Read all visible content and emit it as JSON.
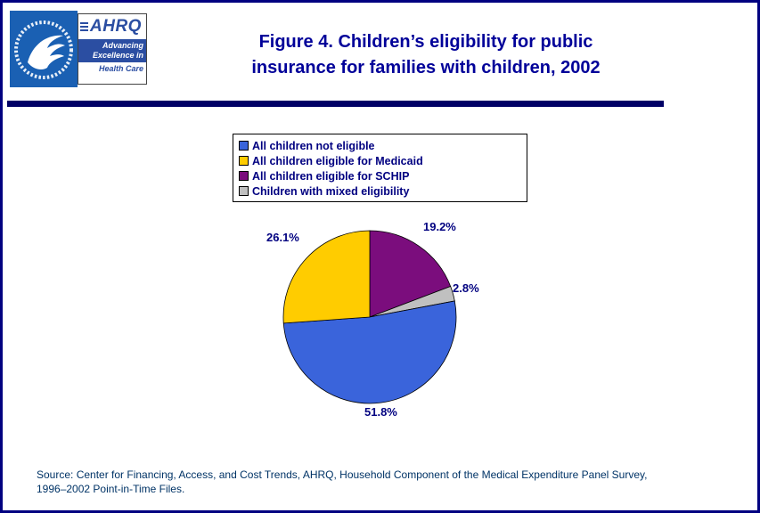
{
  "header": {
    "ahrq_logo": {
      "acronym": "AHRQ",
      "tagline_line1": "Advancing",
      "tagline_line2": "Excellence in",
      "tagline_line3": "Health Care"
    },
    "title_lines": [
      "Figure 4. Children’s eligibility for public",
      "insurance for families with children, 2002"
    ]
  },
  "chart_data": {
    "type": "pie",
    "title": "Figure 4. Children’s eligibility for public insurance for families with children, 2002",
    "slices": [
      {
        "label": "All children not eligible",
        "value": 51.8,
        "percent_label": "51.8%",
        "color": "#3A64DB"
      },
      {
        "label": "All children eligible for Medicaid",
        "value": 26.1,
        "percent_label": "26.1%",
        "color": "#FFCC00"
      },
      {
        "label": "All children eligible for SCHIP",
        "value": 19.2,
        "percent_label": "19.2%",
        "color": "#7B0D7D"
      },
      {
        "label": "Children with mixed eligibility",
        "value": 2.8,
        "percent_label": "2.8%",
        "color": "#C0C0C0"
      }
    ],
    "layout": {
      "start_angle_deg": 0,
      "direction": "clockwise",
      "draw_order": [
        2,
        3,
        0,
        1
      ],
      "legend_position": "above-chart",
      "legend_border": true,
      "grid": false
    }
  },
  "source": {
    "line1": "Source: Center for Financing, Access, and Cost Trends, AHRQ, Household Component of the Medical Expenditure Panel Survey,",
    "line2": "1996–2002 Point-in-Time Files."
  },
  "theme_colors": {
    "page_border": "#000080",
    "title_text": "#000099",
    "header_rule": "#000066",
    "legend_and_label_text": "#000080",
    "source_text": "#003366",
    "hhs_logo_blue": "#1A60B3",
    "ahrq_blue": "#2B4EA2"
  }
}
